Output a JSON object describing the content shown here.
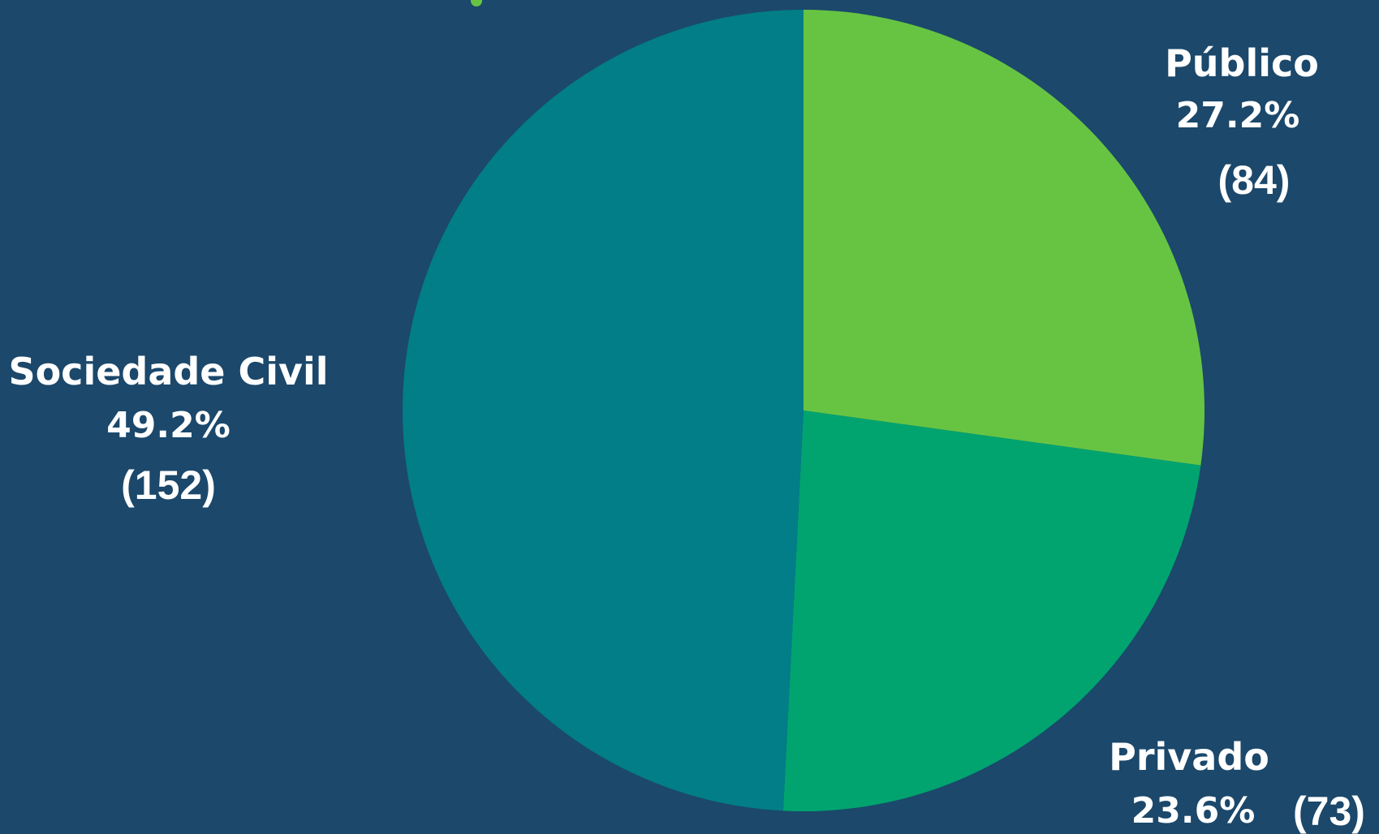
{
  "chart_data": {
    "type": "pie",
    "slices": [
      {
        "label": "Público",
        "percent_label": "27.2%",
        "count_label": "(84)",
        "value": 84,
        "color": "#67c443"
      },
      {
        "label": "Privado",
        "percent_label": "23.6%",
        "count_label": "(73)",
        "value": 73,
        "color": "#01a46f"
      },
      {
        "label": "Sociedade Civil",
        "percent_label": "49.2%",
        "count_label": "(152)",
        "value": 152,
        "color": "#017e88"
      }
    ],
    "start_angle_deg": 0,
    "direction": "clockwise",
    "legend": "none",
    "background_color": "#1b486b"
  }
}
